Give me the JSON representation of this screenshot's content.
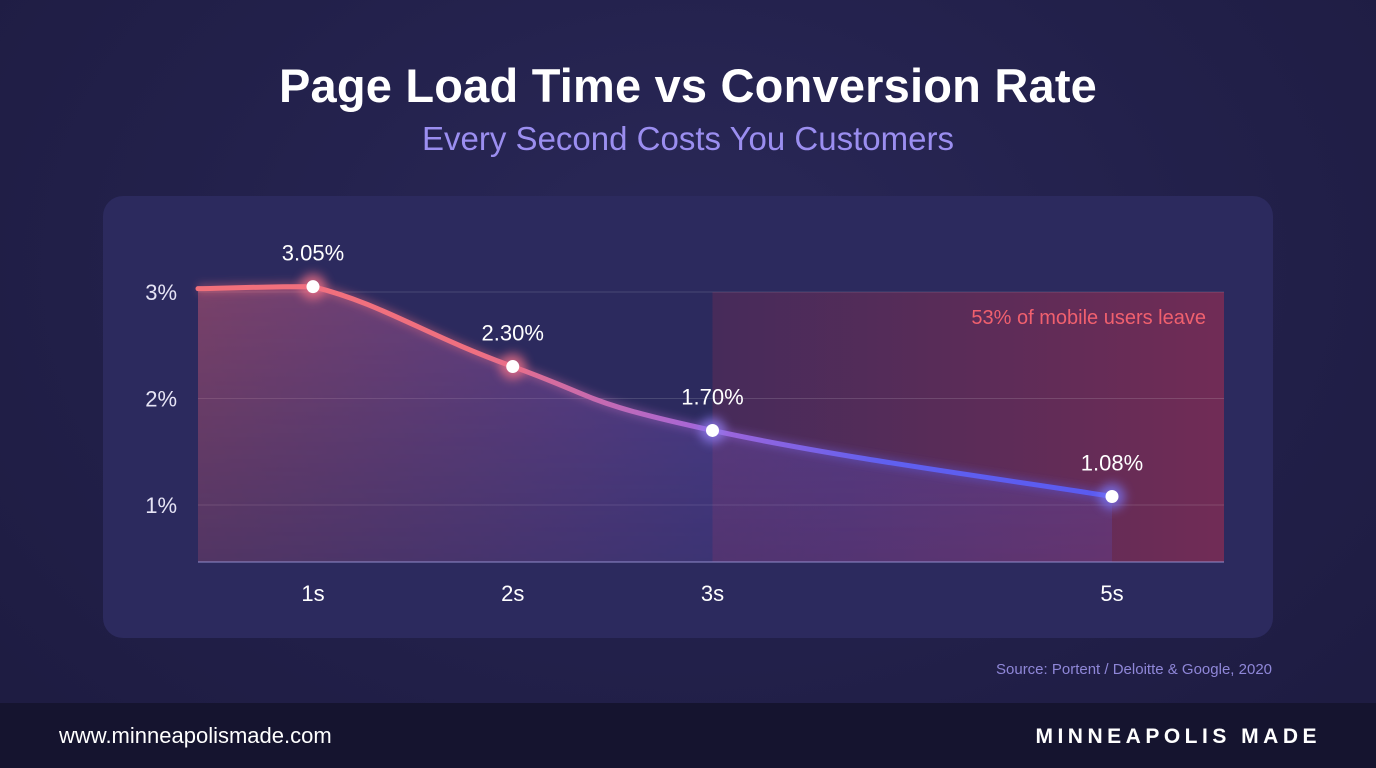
{
  "header": {
    "title": "Page Load Time vs Conversion Rate",
    "subtitle": "Every Second Costs You Customers"
  },
  "chart_data": {
    "type": "area",
    "title": "Page Load Time vs Conversion Rate",
    "subtitle": "Every Second Costs You Customers",
    "xlabel": "",
    "ylabel": "",
    "categories": [
      "1s",
      "2s",
      "3s",
      "5s"
    ],
    "x": [
      1,
      2,
      3,
      5
    ],
    "values": [
      3.05,
      2.3,
      1.7,
      1.08
    ],
    "data_labels": [
      "3.05%",
      "2.30%",
      "1.70%",
      "1.08%"
    ],
    "ylim": [
      0.5,
      3.0
    ],
    "yticks": [
      1,
      2,
      3
    ],
    "ytick_labels": [
      "1%",
      "2%",
      "3%"
    ],
    "grid": true,
    "annotation": {
      "text": "53% of mobile users leave",
      "x_start": 3
    }
  },
  "source": "Source: Portent / Deloitte & Google, 2020",
  "footer": {
    "url": "www.minneapolismade.com",
    "brand": "MINNEAPOLIS MADE"
  },
  "colors": {
    "background": "#22204a",
    "panel": "#2c2a5e",
    "line_start": "#f2707a",
    "line_end": "#5a5af0",
    "subtitle": "#9b8ef0",
    "annotation": "#f0606e",
    "footer": "#15142f"
  }
}
